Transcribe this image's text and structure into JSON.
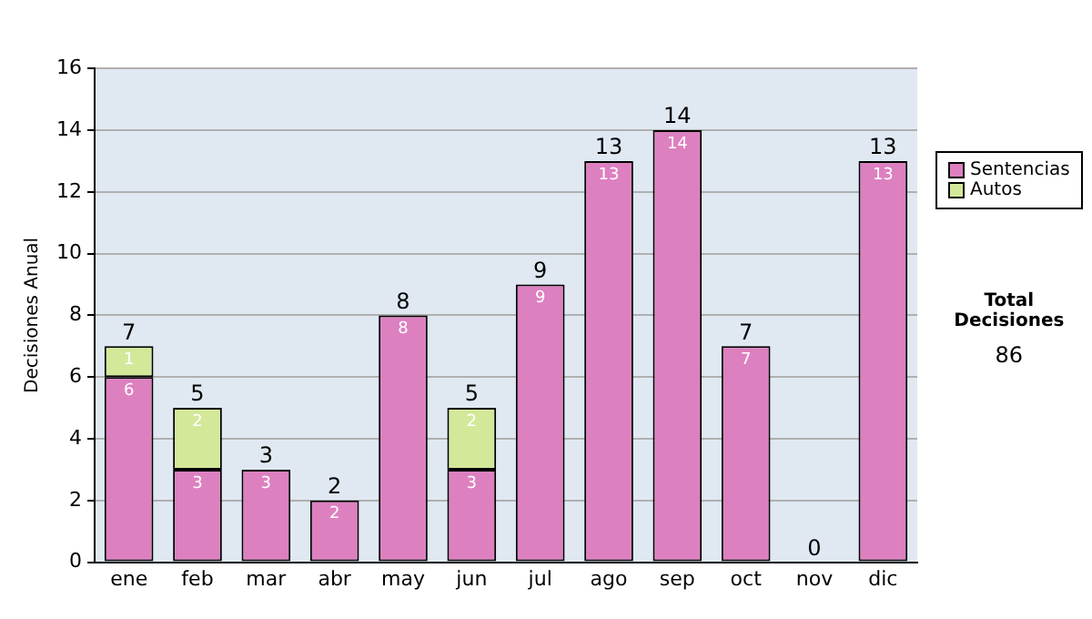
{
  "chart_data": {
    "type": "bar",
    "stacked": true,
    "ylabel": "Decisiones Anual",
    "categories": [
      "ene",
      "feb",
      "mar",
      "abr",
      "may",
      "jun",
      "jul",
      "ago",
      "sep",
      "oct",
      "nov",
      "dic"
    ],
    "series": [
      {
        "name": "Sentencias",
        "color": "#dd80c0",
        "values": [
          6,
          3,
          3,
          2,
          8,
          3,
          9,
          13,
          14,
          7,
          0,
          13
        ],
        "value_labels": [
          "6",
          "3",
          "3",
          "2",
          "8",
          "3",
          "9",
          "13",
          "14",
          "7",
          null,
          "13"
        ]
      },
      {
        "name": "Autos",
        "color": "#d4e89a",
        "values": [
          1,
          2,
          0,
          0,
          0,
          2,
          0,
          0,
          0,
          0,
          0,
          0
        ],
        "value_labels": [
          "1",
          "2",
          null,
          null,
          null,
          "2",
          null,
          null,
          null,
          null,
          null,
          null
        ]
      }
    ],
    "totals": [
      "7",
      "5",
      "3",
      "2",
      "8",
      "5",
      "9",
      "13",
      "14",
      "7",
      "0",
      "13"
    ],
    "ylim": [
      0,
      16
    ],
    "yticks": [
      0,
      2,
      4,
      6,
      8,
      10,
      12,
      14,
      16
    ],
    "grid": "y",
    "legend": "right",
    "annotations": [
      "Total Decisiones",
      "86"
    ]
  }
}
